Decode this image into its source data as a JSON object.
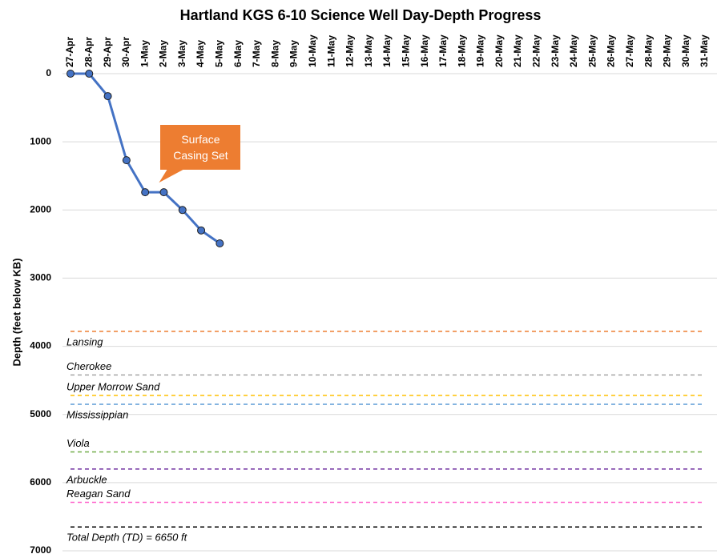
{
  "chart_data": {
    "type": "line",
    "title": "Hartland KGS 6-10 Science Well Day-Depth Progress",
    "y_axis_label": "Depth (feet below KB)",
    "categories": [
      "27-Apr",
      "28-Apr",
      "29-Apr",
      "30-Apr",
      "1-May",
      "2-May",
      "3-May",
      "4-May",
      "5-May",
      "6-May",
      "7-May",
      "8-May",
      "9-May",
      "10-May",
      "11-May",
      "12-May",
      "13-May",
      "14-May",
      "15-May",
      "16-May",
      "17-May",
      "18-May",
      "19-May",
      "20-May",
      "21-May",
      "22-May",
      "23-May",
      "24-May",
      "25-May",
      "26-May",
      "27-May",
      "28-May",
      "29-May",
      "30-May",
      "31-May"
    ],
    "series": [
      {
        "name": "Depth",
        "color": "#4472c4",
        "values": [
          0,
          0,
          330,
          1270,
          1740,
          1740,
          2000,
          2300,
          2490,
          null,
          null,
          null,
          null,
          null,
          null,
          null,
          null,
          null,
          null,
          null,
          null,
          null,
          null,
          null,
          null,
          null,
          null,
          null,
          null,
          null,
          null,
          null,
          null,
          null,
          null
        ]
      }
    ],
    "ylim": [
      0,
      7000
    ],
    "yticks": [
      0,
      1000,
      2000,
      3000,
      4000,
      5000,
      6000,
      7000
    ],
    "y_inverted": true,
    "grid": true,
    "formations": [
      {
        "name": "Lansing",
        "depth": 3780,
        "color": "#ed7d31",
        "label_position": "below"
      },
      {
        "name": "Cherokee",
        "depth": 4420,
        "color": "#a5a5a5",
        "label_position": "above"
      },
      {
        "name": "Upper Morrow Sand",
        "depth": 4720,
        "color": "#ffc000",
        "label_position": "above"
      },
      {
        "name": "Mississippian",
        "depth": 4850,
        "color": "#5b9bd5",
        "label_position": "below"
      },
      {
        "name": "Viola",
        "depth": 5550,
        "color": "#70ad47",
        "label_position": "above"
      },
      {
        "name": "Arbuckle",
        "depth": 5800,
        "color": "#7030a0",
        "label_position": "below"
      },
      {
        "name": "Reagan Sand",
        "depth": 6290,
        "color": "#ff66cc",
        "label_position": "above"
      },
      {
        "name": "Total Depth (TD) = 6650 ft",
        "depth": 6650,
        "color": "#000000",
        "label_position": "below"
      }
    ],
    "annotation": {
      "text": "Surface Casing Set",
      "color": "#ed7d31",
      "category_index": 5
    }
  }
}
